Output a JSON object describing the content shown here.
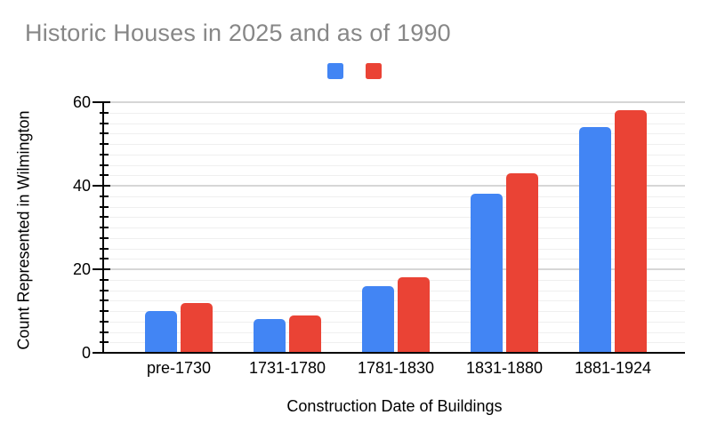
{
  "chart_data": {
    "type": "bar",
    "title": "Historic Houses in 2025 and as of 1990",
    "xlabel": "Construction Date of Buildings",
    "ylabel": "Count Represented in Wilmington",
    "categories": [
      "pre-1730",
      "1731-1780",
      "1781-1830",
      "1831-1880",
      "1881-1924"
    ],
    "series": [
      {
        "legend_label": "",
        "color": "#4285F4",
        "values": [
          10,
          8,
          16,
          38,
          54
        ]
      },
      {
        "legend_label": "",
        "color": "#EA4335",
        "values": [
          12,
          9,
          18,
          43,
          58
        ]
      }
    ],
    "ylim": [
      0,
      60
    ],
    "ytick_step": 20,
    "minor_tick_step": 2.5,
    "yticks": [
      0,
      20,
      40,
      60
    ],
    "grid": true,
    "legend_position": "top-center",
    "legend_has_text": false
  },
  "style": {
    "series_blue": "#4285F4",
    "series_red": "#EA4335",
    "title_color": "#878787",
    "axis_color": "#000000",
    "major_gridline_color": "#d6d6d6",
    "minor_gridline_color": "#efefef"
  }
}
